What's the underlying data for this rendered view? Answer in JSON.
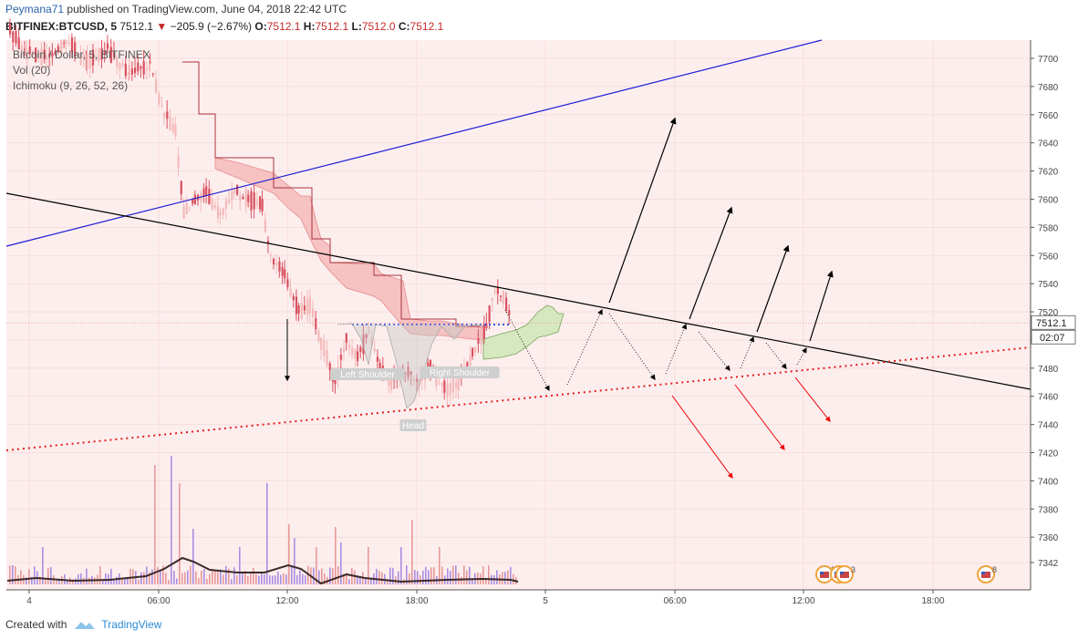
{
  "header": {
    "author": "Peymana71",
    "published_text": "published on TradingView.com, June 04, 2018 22:42 UTC"
  },
  "ticker": {
    "symbol": "BITFINEX:BTCUSD, 5",
    "last": "7512.1",
    "change": "−205.9 (−2.67%)",
    "open_label": "O:",
    "open": "7512.1",
    "high_label": "H:",
    "high": "7512.1",
    "low_label": "L:",
    "low": "7512.0",
    "close_label": "C:",
    "close": "7512.1"
  },
  "legend": {
    "title": "Bitcoin / Dollar, 5, BITFINEX",
    "volume": "Vol (20)",
    "ichimoku": "Ichimoku (9, 26, 52, 26)"
  },
  "footer": {
    "created_with": "Created with",
    "brand": "TradingView"
  },
  "colors": {
    "background": "#fdeeee",
    "up": "#f4b9b9",
    "down": "#d9515f",
    "cloud_bear": "#f6c2c2",
    "cloud_bull": "#d6e8c0",
    "blue_line": "#1d1dd6",
    "black_line": "#000000",
    "red_dotted": "#e51c1c",
    "neckline": "#3a59e6"
  },
  "chart_data": {
    "type": "candlestick",
    "y_axis_ticks": [
      7342,
      7360,
      7380,
      7400,
      7420,
      7440,
      7460,
      7480,
      7500,
      7520,
      7540,
      7560,
      7580,
      7600,
      7620,
      7640,
      7660,
      7680,
      7700
    ],
    "x_axis_ticks": [
      "4",
      "06:00",
      "12:00",
      "18:00",
      "5",
      "06:00",
      "12:00",
      "18:00"
    ],
    "last_price_label": "7512.1",
    "countdown_label": "02:07",
    "pattern_labels": [
      "Left Shoulder",
      "Head",
      "Right Shoulder"
    ],
    "event_badges": [
      "2",
      "2",
      "3",
      "8"
    ],
    "price_path": [
      [
        0,
        7718
      ],
      [
        12,
        7705
      ],
      [
        26,
        7700
      ],
      [
        40,
        7712
      ],
      [
        55,
        7698
      ],
      [
        70,
        7705
      ],
      [
        85,
        7690
      ],
      [
        100,
        7695
      ],
      [
        110,
        7660
      ],
      [
        118,
        7650
      ],
      [
        124,
        7590
      ],
      [
        132,
        7600
      ],
      [
        140,
        7605
      ],
      [
        150,
        7590
      ],
      [
        160,
        7605
      ],
      [
        170,
        7600
      ],
      [
        180,
        7595
      ],
      [
        186,
        7560
      ],
      [
        196,
        7545
      ],
      [
        206,
        7520
      ],
      [
        214,
        7525
      ],
      [
        222,
        7500
      ],
      [
        232,
        7470
      ],
      [
        240,
        7500
      ],
      [
        248,
        7488
      ],
      [
        256,
        7505
      ],
      [
        264,
        7480
      ],
      [
        272,
        7470
      ],
      [
        282,
        7478
      ],
      [
        292,
        7470
      ],
      [
        300,
        7480
      ],
      [
        310,
        7465
      ],
      [
        320,
        7470
      ],
      [
        330,
        7490
      ],
      [
        340,
        7510
      ],
      [
        346,
        7535
      ],
      [
        352,
        7530
      ],
      [
        358,
        7512
      ]
    ],
    "volume_profile": "low with spikes near 06:00-12:00 and 18:00"
  }
}
